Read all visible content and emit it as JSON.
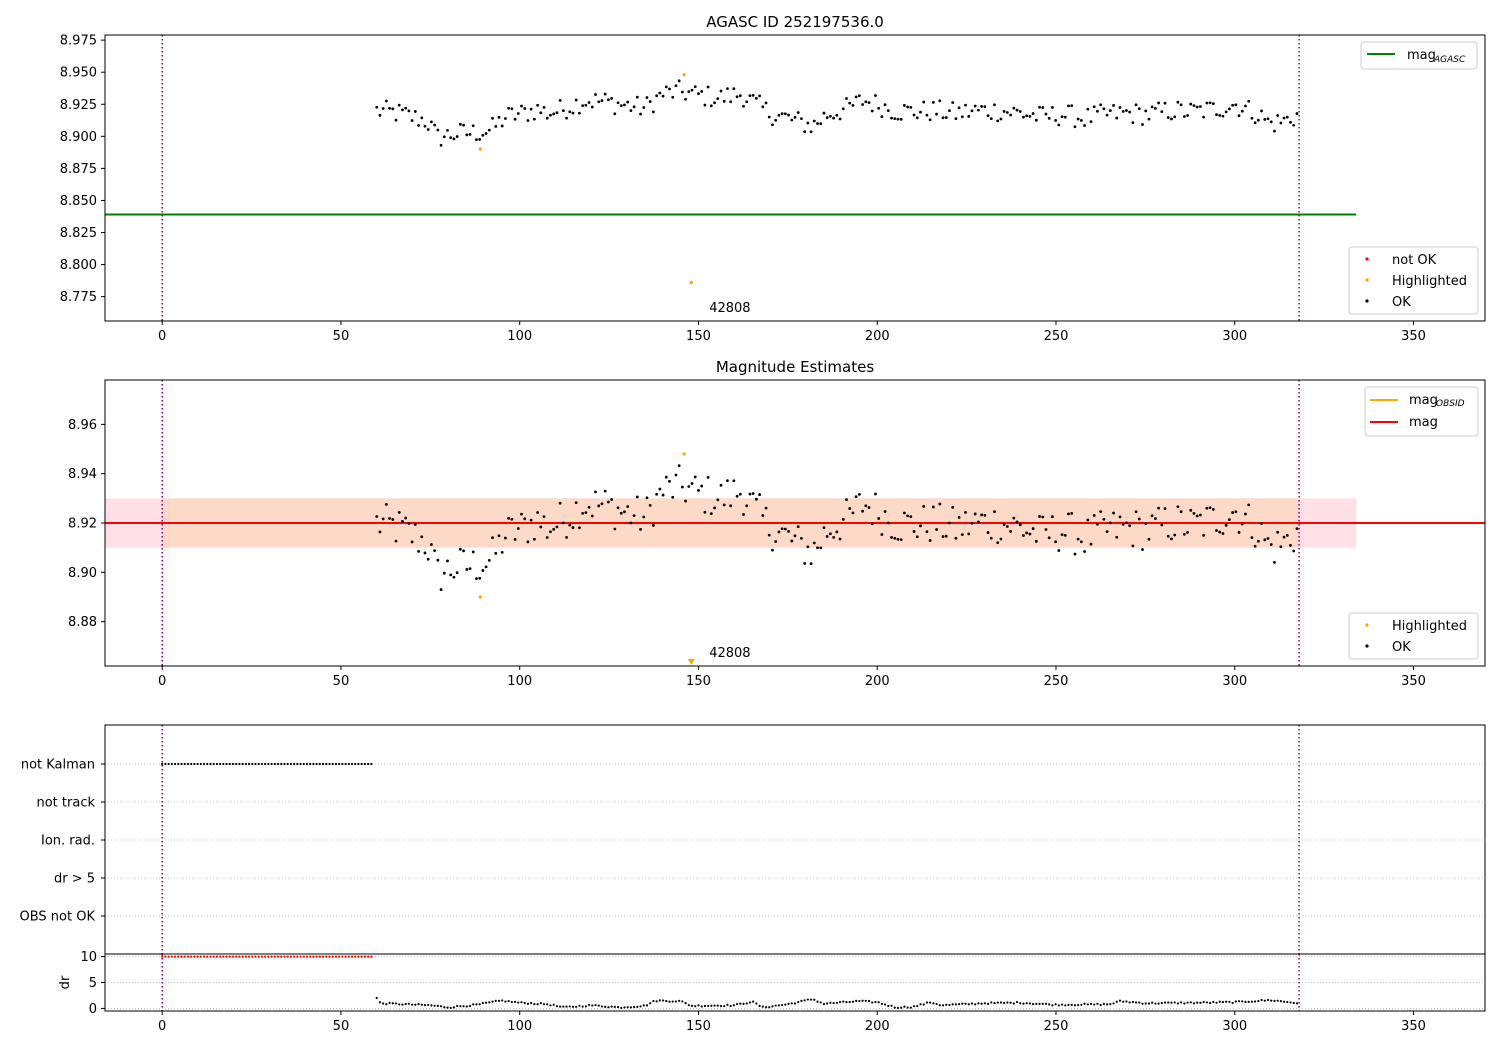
{
  "figure_colors": {
    "ok": "#000000",
    "highlighted": "#ffa500",
    "not_ok": "#ff0000",
    "mag_agasc": "#008000",
    "mag_obsid": "#ffa500",
    "mag": "#ff0000",
    "band_inner": "#fdd9c7",
    "band_outer": "#ffe0e6",
    "vline": "#800080",
    "grid": "#b0b0b0"
  },
  "chart_data": [
    {
      "id": "agasc",
      "type": "scatter",
      "title": "AGASC ID 252197536.0",
      "xlabel": "",
      "ylabel": "",
      "xlim": [
        -16,
        370
      ],
      "ylim": [
        8.756,
        8.979
      ],
      "xticks": [
        "0",
        "50",
        "100",
        "150",
        "200",
        "250",
        "300",
        "350"
      ],
      "yticks": [
        "8.775",
        "8.800",
        "8.825",
        "8.850",
        "8.875",
        "8.900",
        "8.925",
        "8.950",
        "8.975"
      ],
      "vlines_x": [
        0,
        318
      ],
      "mag_agasc": 8.839,
      "annotation": {
        "text": "42808",
        "x": 153,
        "y": 8.767
      },
      "highlighted_points": [
        [
          89,
          8.89
        ],
        [
          146,
          8.948
        ],
        [
          148,
          8.786
        ]
      ],
      "legend_lines": [
        {
          "label": "mag",
          "subscript": "AGASC",
          "color_key": "mag_agasc"
        }
      ],
      "legend_markers": [
        {
          "label": "not OK",
          "color_key": "not_ok"
        },
        {
          "label": "Highlighted",
          "color_key": "highlighted"
        },
        {
          "label": "OK",
          "color_key": "ok"
        }
      ]
    },
    {
      "id": "estimates",
      "type": "scatter",
      "title": "Magnitude Estimates",
      "xlabel": "",
      "ylabel": "",
      "xlim": [
        -16,
        370
      ],
      "ylim": [
        8.862,
        8.978
      ],
      "xticks": [
        "0",
        "50",
        "100",
        "150",
        "200",
        "250",
        "300",
        "350"
      ],
      "yticks": [
        "8.88",
        "8.90",
        "8.92",
        "8.94",
        "8.96"
      ],
      "vlines_x": [
        0,
        318
      ],
      "mag": 8.92,
      "band_inner": [
        8.91,
        8.93,
        -16,
        334
      ],
      "band_outer": [
        8.91,
        8.93,
        334,
        334
      ],
      "annotation": {
        "text": "42808",
        "x": 153,
        "y": 8.865
      },
      "highlighted_points": [
        [
          89,
          8.89
        ],
        [
          146,
          8.948
        ]
      ],
      "outlier_arrow": {
        "x": 148,
        "y": 8.863
      },
      "legend_lines": [
        {
          "label": "mag",
          "subscript": "OBSID",
          "color_key": "mag_obsid"
        },
        {
          "label": "mag",
          "subscript": "",
          "color_key": "mag"
        }
      ],
      "legend_markers": [
        {
          "label": "Highlighted",
          "color_key": "highlighted"
        },
        {
          "label": "OK",
          "color_key": "ok"
        }
      ]
    },
    {
      "id": "flags",
      "type": "scatter",
      "title": "",
      "xlabel": "",
      "ylabel": "",
      "xlim": [
        -16,
        370
      ],
      "categories": [
        "not Kalman",
        "not track",
        "Ion. rad.",
        "dr > 5",
        "OBS not OK"
      ],
      "flag_segments": [
        {
          "category": "not Kalman",
          "x_start": 0,
          "x_end": 59
        }
      ],
      "vlines_x": [
        0,
        318
      ]
    },
    {
      "id": "dr",
      "type": "scatter",
      "title": "",
      "xlabel": "",
      "ylabel": "dr",
      "xlim": [
        -16,
        370
      ],
      "ylim": [
        -0.5,
        10.5
      ],
      "xticks": [
        "0",
        "50",
        "100",
        "150",
        "200",
        "250",
        "300",
        "350"
      ],
      "yticks": [
        "0",
        "5",
        "10"
      ],
      "vlines_x": [
        0,
        318
      ],
      "clipped_segment": {
        "x_start": 0,
        "x_end": 59,
        "y": 10
      },
      "dr_range": {
        "x_start": 60,
        "x_end": 318
      },
      "dr_profile": [
        [
          60,
          2.0
        ],
        [
          61,
          1.0
        ],
        [
          75,
          0.6
        ],
        [
          80,
          0.2
        ],
        [
          88,
          0.7
        ],
        [
          95,
          1.5
        ],
        [
          100,
          1.1
        ],
        [
          108,
          0.8
        ],
        [
          112,
          0.2
        ],
        [
          120,
          0.6
        ],
        [
          128,
          0.2
        ],
        [
          135,
          0.5
        ],
        [
          138,
          1.5
        ],
        [
          145,
          1.4
        ],
        [
          148,
          0.5
        ],
        [
          160,
          0.6
        ],
        [
          165,
          1.3
        ],
        [
          168,
          0.2
        ],
        [
          175,
          0.8
        ],
        [
          182,
          1.8
        ],
        [
          185,
          0.9
        ],
        [
          195,
          1.4
        ],
        [
          200,
          1.2
        ],
        [
          205,
          0.2
        ],
        [
          210,
          0.3
        ],
        [
          215,
          1.2
        ],
        [
          218,
          0.6
        ],
        [
          230,
          1.0
        ],
        [
          240,
          1.1
        ],
        [
          250,
          0.7
        ],
        [
          265,
          0.8
        ],
        [
          268,
          1.4
        ],
        [
          275,
          1.0
        ],
        [
          290,
          1.1
        ],
        [
          300,
          1.2
        ],
        [
          310,
          1.6
        ],
        [
          318,
          1.0
        ]
      ]
    }
  ]
}
